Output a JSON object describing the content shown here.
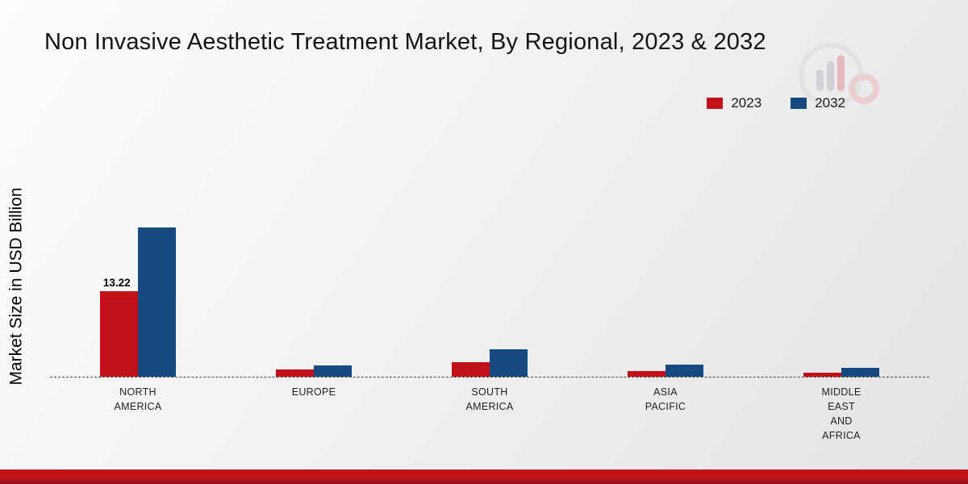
{
  "chart_data": {
    "type": "bar",
    "title": "Non Invasive Aesthetic Treatment Market, By Regional, 2023 & 2032",
    "ylabel": "Market Size in USD Billion",
    "categories": [
      "NORTH AMERICA",
      "EUROPE",
      "SOUTH AMERICA",
      "ASIA PACIFIC",
      "MIDDLE EAST AND AFRICA"
    ],
    "series": [
      {
        "name": "2023",
        "color": "#c1121a",
        "values": [
          13.22,
          1.1,
          2.2,
          0.9,
          0.6
        ]
      },
      {
        "name": "2032",
        "color": "#15497f",
        "values": [
          23.1,
          1.7,
          4.3,
          1.9,
          1.4
        ]
      }
    ],
    "value_labels": [
      {
        "series": "2023",
        "category_index": 0,
        "text": "13.22"
      }
    ],
    "ylim": [
      0,
      30
    ],
    "grid": false,
    "baseline_style": "dashed",
    "legend_position": "top-right"
  }
}
